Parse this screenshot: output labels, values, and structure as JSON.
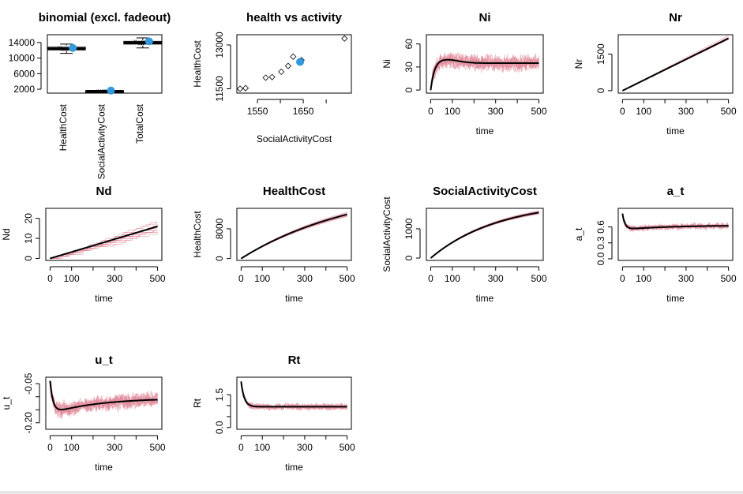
{
  "colors": {
    "sim": "#e28a9b",
    "mean": "#000000",
    "highlight": "#3399dd",
    "box": "#000000"
  },
  "chart_data": [
    {
      "id": "p1",
      "type": "box",
      "title": "binomial (excl. fadeout)",
      "categories": [
        "HealthCost",
        "SocialActivityCost",
        "TotalCost"
      ],
      "boxes": [
        {
          "median": 12400,
          "q1": 12100,
          "q3": 12800,
          "whisker_low": 11200,
          "whisker_high": 13600,
          "highlight": 12600
        },
        {
          "median": 1500,
          "q1": 1450,
          "q3": 1560,
          "whisker_low": 1400,
          "whisker_high": 1700,
          "highlight": 1650
        },
        {
          "median": 13900,
          "q1": 13600,
          "q3": 14300,
          "whisker_low": 12600,
          "whisker_high": 15200,
          "highlight": 14300
        }
      ],
      "yticks": [
        2000,
        6000,
        10000,
        14000
      ],
      "ylim": [
        1000,
        16000
      ]
    },
    {
      "id": "p2",
      "type": "scatter",
      "title": "health vs activity",
      "xlabel": "SocialActivityCost",
      "ylabel": "HealthCost",
      "xticks": [
        1550,
        1650
      ],
      "yticks": [
        11500,
        13000
      ],
      "xlim": [
        1505,
        1755
      ],
      "ylim": [
        11350,
        13350
      ],
      "points": [
        {
          "x": 1512,
          "y": 11500
        },
        {
          "x": 1524,
          "y": 11520
        },
        {
          "x": 1568,
          "y": 11880
        },
        {
          "x": 1582,
          "y": 11900
        },
        {
          "x": 1602,
          "y": 12080
        },
        {
          "x": 1617,
          "y": 12280
        },
        {
          "x": 1628,
          "y": 12600
        },
        {
          "x": 1646,
          "y": 12480
        },
        {
          "x": 1740,
          "y": 13220
        }
      ],
      "highlight": {
        "x": 1643,
        "y": 12420
      }
    },
    {
      "id": "p3",
      "type": "line",
      "title": "Ni",
      "xlabel": "time",
      "ylabel": "Ni",
      "xticks": [
        0,
        100,
        300,
        500
      ],
      "yticks": [
        0,
        30,
        60
      ],
      "xlim": [
        -20,
        520
      ],
      "ylim": [
        -4,
        72
      ],
      "mean_model": {
        "kind": "rise",
        "a": 35,
        "k": 0.06,
        "peak": 40,
        "tp": 60
      },
      "noise": 12,
      "n_sims": 12
    },
    {
      "id": "p4",
      "type": "line",
      "title": "Nr",
      "xlabel": "time",
      "ylabel": "Nr",
      "xticks": [
        0,
        100,
        300,
        500
      ],
      "yticks": [
        0,
        1500
      ],
      "xlim": [
        -20,
        520
      ],
      "ylim": [
        -100,
        2300
      ],
      "mean_model": {
        "kind": "linear",
        "slope": 4.3
      },
      "noise": 0.05,
      "n_sims": 12
    },
    {
      "id": "p5",
      "type": "line",
      "title": "Nd",
      "xlabel": "time",
      "ylabel": "Nd",
      "xticks": [
        0,
        100,
        300,
        500
      ],
      "yticks": [
        0,
        10,
        20
      ],
      "xlim": [
        -20,
        520
      ],
      "ylim": [
        -1,
        25
      ],
      "mean_model": {
        "kind": "linear",
        "slope": 0.032
      },
      "noise": 0.35,
      "n_sims": 12,
      "step": true
    },
    {
      "id": "p6",
      "type": "line",
      "title": "HealthCost",
      "xlabel": "time",
      "ylabel": "HealthCost",
      "xticks": [
        0,
        100,
        300,
        500
      ],
      "yticks": [
        0,
        8000
      ],
      "xlim": [
        -20,
        520
      ],
      "ylim": [
        -500,
        13500
      ],
      "mean_model": {
        "kind": "sat",
        "a": 20000,
        "k": 0.0018
      },
      "noise": 0.06,
      "n_sims": 12
    },
    {
      "id": "p7",
      "type": "line",
      "title": "SocialActivityCost",
      "xlabel": "time",
      "ylabel": "SocialActivityCost",
      "xticks": [
        0,
        100,
        300,
        500
      ],
      "yticks": [
        0,
        1000
      ],
      "xlim": [
        -20,
        520
      ],
      "ylim": [
        -80,
        1700
      ],
      "mean_model": {
        "kind": "sat",
        "a": 1950,
        "k": 0.0032
      },
      "noise": 0.06,
      "n_sims": 12
    },
    {
      "id": "p8",
      "type": "line",
      "title": "a_t",
      "xlabel": "time",
      "ylabel": "a_t",
      "xticks": [
        0,
        100,
        300,
        500
      ],
      "yticks": [
        0,
        0.3,
        0.6
      ],
      "ytick_labels": [
        "0.0",
        "0.3",
        "0.6"
      ],
      "xlim": [
        -20,
        520
      ],
      "ylim": [
        -0.03,
        0.95
      ],
      "mean_model": {
        "kind": "dip",
        "start": 0.85,
        "low": 0.55,
        "end": 0.63,
        "tau": 12
      },
      "noise": 0.06,
      "n_sims": 12
    },
    {
      "id": "p9",
      "type": "line",
      "title": "u_t",
      "xlabel": "time",
      "ylabel": "u_t",
      "xticks": [
        0,
        100,
        300,
        500
      ],
      "yticks": [
        -0.2,
        -0.15,
        -0.1,
        -0.05
      ],
      "ytick_labels": [
        "-0.20",
        "",
        "",
        "-0.05"
      ],
      "xlim": [
        -20,
        520
      ],
      "ylim": [
        -0.225,
        -0.025
      ],
      "mean_model": {
        "kind": "dip",
        "start": -0.04,
        "low": -0.165,
        "end": -0.105,
        "tau": 14
      },
      "noise": 0.035,
      "n_sims": 12
    },
    {
      "id": "p10",
      "type": "line",
      "title": "Rt",
      "xlabel": "time",
      "ylabel": "Rt",
      "xticks": [
        0,
        100,
        300,
        500
      ],
      "yticks": [
        0,
        0.5,
        1.0,
        1.5
      ],
      "ytick_labels": [
        "0.0",
        "",
        "",
        "1.5"
      ],
      "xlim": [
        -20,
        520
      ],
      "ylim": [
        -0.08,
        2.3
      ],
      "mean_model": {
        "kind": "decay",
        "start": 2.1,
        "end": 0.95,
        "tau": 15
      },
      "noise": 0.16,
      "n_sims": 12
    }
  ]
}
